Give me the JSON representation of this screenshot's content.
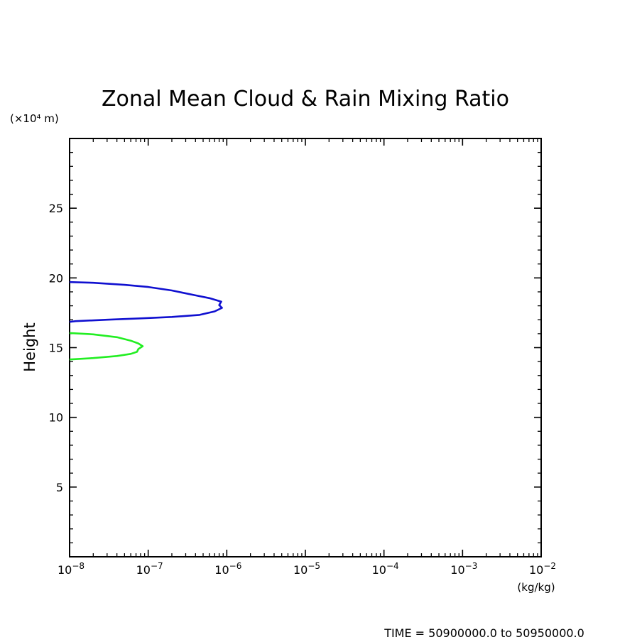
{
  "chart_data": {
    "type": "line",
    "title": "Zonal Mean Cloud & Rain Mixing Ratio",
    "ylabel": "Height",
    "y_unit_label": "(×10⁴ m)",
    "x_unit_label": "(kg/kg)",
    "x_scale": "log",
    "xlim": [
      1e-08,
      0.01
    ],
    "ylim": [
      0,
      30
    ],
    "x_ticks": [
      {
        "base": "10",
        "exp": "−8"
      },
      {
        "base": "10",
        "exp": "−7"
      },
      {
        "base": "10",
        "exp": "−6"
      },
      {
        "base": "10",
        "exp": "−5"
      },
      {
        "base": "10",
        "exp": "−4"
      },
      {
        "base": "10",
        "exp": "−3"
      },
      {
        "base": "10",
        "exp": "−2"
      }
    ],
    "y_ticks": [
      "5",
      "10",
      "15",
      "20",
      "25"
    ],
    "y_tick_values": [
      5,
      10,
      15,
      20,
      25
    ],
    "grid": false,
    "series": [
      {
        "color": "#1010d0",
        "x": [
          1e-08,
          2e-08,
          5e-08,
          1e-07,
          2e-07,
          4e-07,
          6e-07,
          8.5e-07,
          8e-07,
          8.7e-07,
          7e-07,
          4.5e-07,
          2e-07,
          8e-08,
          3e-08,
          1.2e-08,
          1e-08
        ],
        "y": [
          19.7,
          19.65,
          19.5,
          19.35,
          19.1,
          18.75,
          18.55,
          18.3,
          18.05,
          17.85,
          17.6,
          17.35,
          17.2,
          17.1,
          17.0,
          16.9,
          16.85
        ]
      },
      {
        "color": "#22ee22",
        "x": [
          1e-08,
          2e-08,
          4e-08,
          6e-08,
          7.5e-08,
          8.5e-08,
          7.5e-08,
          7.2e-08,
          6e-08,
          4e-08,
          2e-08,
          1e-08
        ],
        "y": [
          16.05,
          15.95,
          15.75,
          15.5,
          15.3,
          15.1,
          14.9,
          14.7,
          14.55,
          14.4,
          14.25,
          14.15
        ]
      }
    ]
  },
  "footer": {
    "time_range": "TIME = 50900000.0 to 50950000.0"
  }
}
